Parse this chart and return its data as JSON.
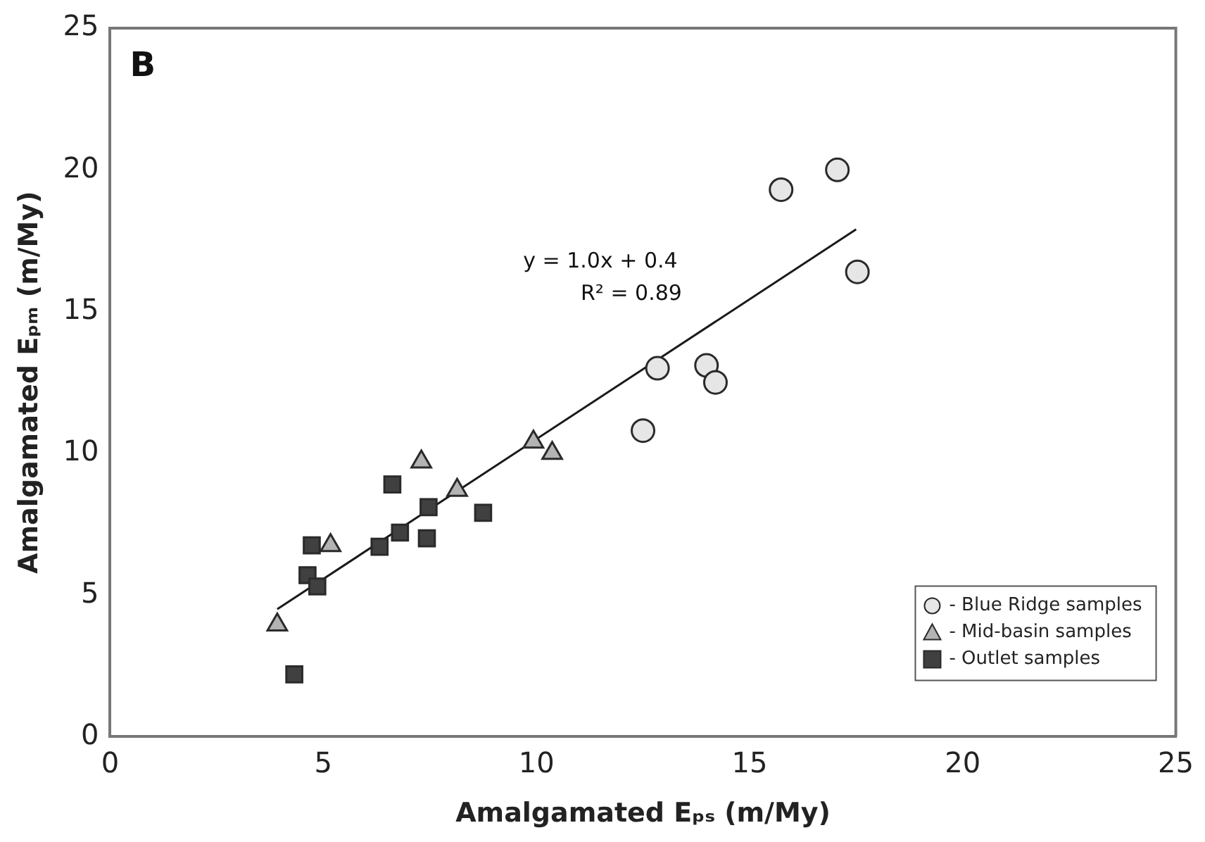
{
  "chart_data": {
    "type": "scatter",
    "xlabel": "Amalgamated Eₚₛ (m/My)",
    "ylabel": "Amalgamated Eₚₘ (m/My)",
    "annotations": [
      "B",
      "y = 1.0x + 0.4",
      "R² = 0.89"
    ],
    "xlim": [
      0,
      25
    ],
    "xticks": [
      0,
      5,
      10,
      15,
      20,
      25
    ],
    "ylim": [
      0,
      25
    ],
    "yticks": [
      0,
      5,
      10,
      15,
      20,
      25
    ],
    "grid": false,
    "legend": "bottom right",
    "series": [
      {
        "name": "- Blue Ridge samples",
        "color": "#e6e6e6",
        "marker": "circle",
        "x": [
          15.74,
          17.06,
          17.53,
          12.84,
          13.99,
          14.2,
          12.5
        ],
        "values": [
          19.3,
          20.0,
          16.4,
          13.0,
          13.1,
          12.5,
          10.8
        ]
      },
      {
        "name": "- Mid-basin samples",
        "color": "#b3b3b3",
        "marker": "triangle",
        "x": [
          7.3,
          8.14,
          9.93,
          10.37,
          5.17,
          3.92
        ],
        "values": [
          9.7,
          8.7,
          10.4,
          10.0,
          6.75,
          3.95
        ]
      },
      {
        "name": "- Outlet samples",
        "color": "#404040",
        "marker": "square",
        "x": [
          6.62,
          7.47,
          8.75,
          6.8,
          7.43,
          6.32,
          4.73,
          4.63,
          4.86,
          4.32
        ],
        "values": [
          8.9,
          8.1,
          7.9,
          7.2,
          7.0,
          6.7,
          6.75,
          5.7,
          5.3,
          2.2
        ]
      },
      {
        "type": "line",
        "color": "#1a1a1a",
        "marker": "none",
        "line_style": "solid",
        "x": [
          3.92,
          17.5
        ],
        "values": [
          4.5,
          17.9
        ]
      }
    ]
  }
}
